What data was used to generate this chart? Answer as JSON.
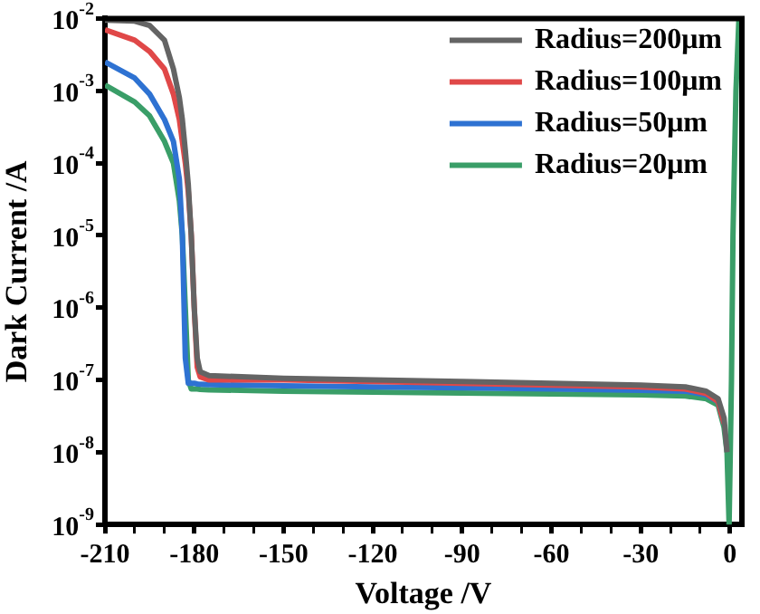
{
  "chart_data": {
    "type": "line",
    "xlabel": "Voltage /V",
    "ylabel": "Dark Current /A",
    "log": "y",
    "grid": false,
    "legend": "top right",
    "marker": "none",
    "line_style": "solid",
    "xlim": [
      -210,
      4
    ],
    "ylim": [
      1e-09,
      0.01
    ],
    "xticks": [
      -210,
      {
        "value": -200,
        "label": null
      },
      {
        "value": -190,
        "label": null
      },
      -180,
      {
        "value": -170,
        "label": null
      },
      {
        "value": -160,
        "label": null
      },
      -150,
      {
        "value": -140,
        "label": null
      },
      {
        "value": -130,
        "label": null
      },
      -120,
      {
        "value": -110,
        "label": null
      },
      {
        "value": -100,
        "label": null
      },
      -90,
      {
        "value": -80,
        "label": null
      },
      {
        "value": -70,
        "label": null
      },
      -60,
      {
        "value": -50,
        "label": null
      },
      {
        "value": -40,
        "label": null
      },
      -30,
      {
        "value": -20,
        "label": null
      },
      {
        "value": -10,
        "label": null
      },
      0
    ],
    "yticks": [
      {
        "value": 1e-09,
        "label": "10$^{-9}$"
      },
      {
        "value": 1e-08,
        "label": "10$^{-8}$"
      },
      {
        "value": 1e-07,
        "label": "10$^{-7}$"
      },
      {
        "value": 1e-06,
        "label": "10$^{-6}$"
      },
      {
        "value": 1e-05,
        "label": "10$^{-5}$"
      },
      {
        "value": 0.0001,
        "label": "10$^{-4}$"
      },
      {
        "value": 0.001,
        "label": "10$^{-3}$"
      },
      {
        "value": 0.01,
        "label": "10$^{-2}$"
      }
    ],
    "x": [
      -210,
      -200,
      -195,
      -190,
      -187,
      -185,
      -184,
      -183,
      -182,
      -181,
      -180,
      -179,
      -178,
      -175,
      -150,
      -120,
      -90,
      -60,
      -30,
      -15,
      -8,
      -4,
      -2,
      -1,
      -0.3,
      0.5,
      1,
      2,
      3
    ],
    "series": [
      {
        "name": "Radius=200μm",
        "color": "#646464",
        "values": [
          0.0095,
          0.0092,
          0.008,
          0.005,
          0.002,
          0.0008,
          0.0004,
          0.00015,
          5e-05,
          1e-05,
          1e-06,
          2e-07,
          1.3e-07,
          1.15e-07,
          1.05e-07,
          1e-07,
          9.5e-08,
          9e-08,
          8.5e-08,
          8e-08,
          7e-08,
          5.5e-08,
          3e-08,
          1e-08,
          null,
          null,
          null,
          null,
          null
        ]
      },
      {
        "name": "Radius=100μm",
        "color": "#e04848",
        "values": [
          0.007,
          0.005,
          0.0035,
          0.002,
          0.0009,
          0.0004,
          0.0002,
          0.0001,
          4e-05,
          1e-05,
          1e-06,
          1.5e-07,
          1.1e-07,
          1e-07,
          1e-07,
          9.5e-08,
          9e-08,
          8.5e-08,
          8e-08,
          7.5e-08,
          6.5e-08,
          5e-08,
          2.5e-08,
          null,
          null,
          null,
          null,
          null,
          null
        ]
      },
      {
        "name": "Radius=50μm",
        "color": "#2e72d2",
        "values": [
          0.0025,
          0.0015,
          0.0009,
          0.0004,
          0.0002,
          6e-05,
          1e-05,
          2e-07,
          9e-08,
          9e-08,
          9e-08,
          8.8e-08,
          8.7e-08,
          8.6e-08,
          8.3e-08,
          8e-08,
          7.8e-08,
          7.5e-08,
          7.2e-08,
          7e-08,
          6.2e-08,
          5e-08,
          2.5e-08,
          null,
          null,
          null,
          null,
          null,
          null
        ]
      },
      {
        "name": "Radius=20μm",
        "color": "#3a9e68",
        "values": [
          0.0012,
          0.0007,
          0.00045,
          0.0002,
          0.0001,
          3e-05,
          1e-05,
          1e-06,
          1e-07,
          7.5e-08,
          7.5e-08,
          7.5e-08,
          7.4e-08,
          7.3e-08,
          7e-08,
          6.8e-08,
          6.6e-08,
          6.4e-08,
          6.2e-08,
          6e-08,
          5.5e-08,
          4.5e-08,
          2.2e-08,
          1e-08,
          1e-09,
          1e-07,
          1e-05,
          0.001,
          0.01
        ]
      }
    ]
  }
}
